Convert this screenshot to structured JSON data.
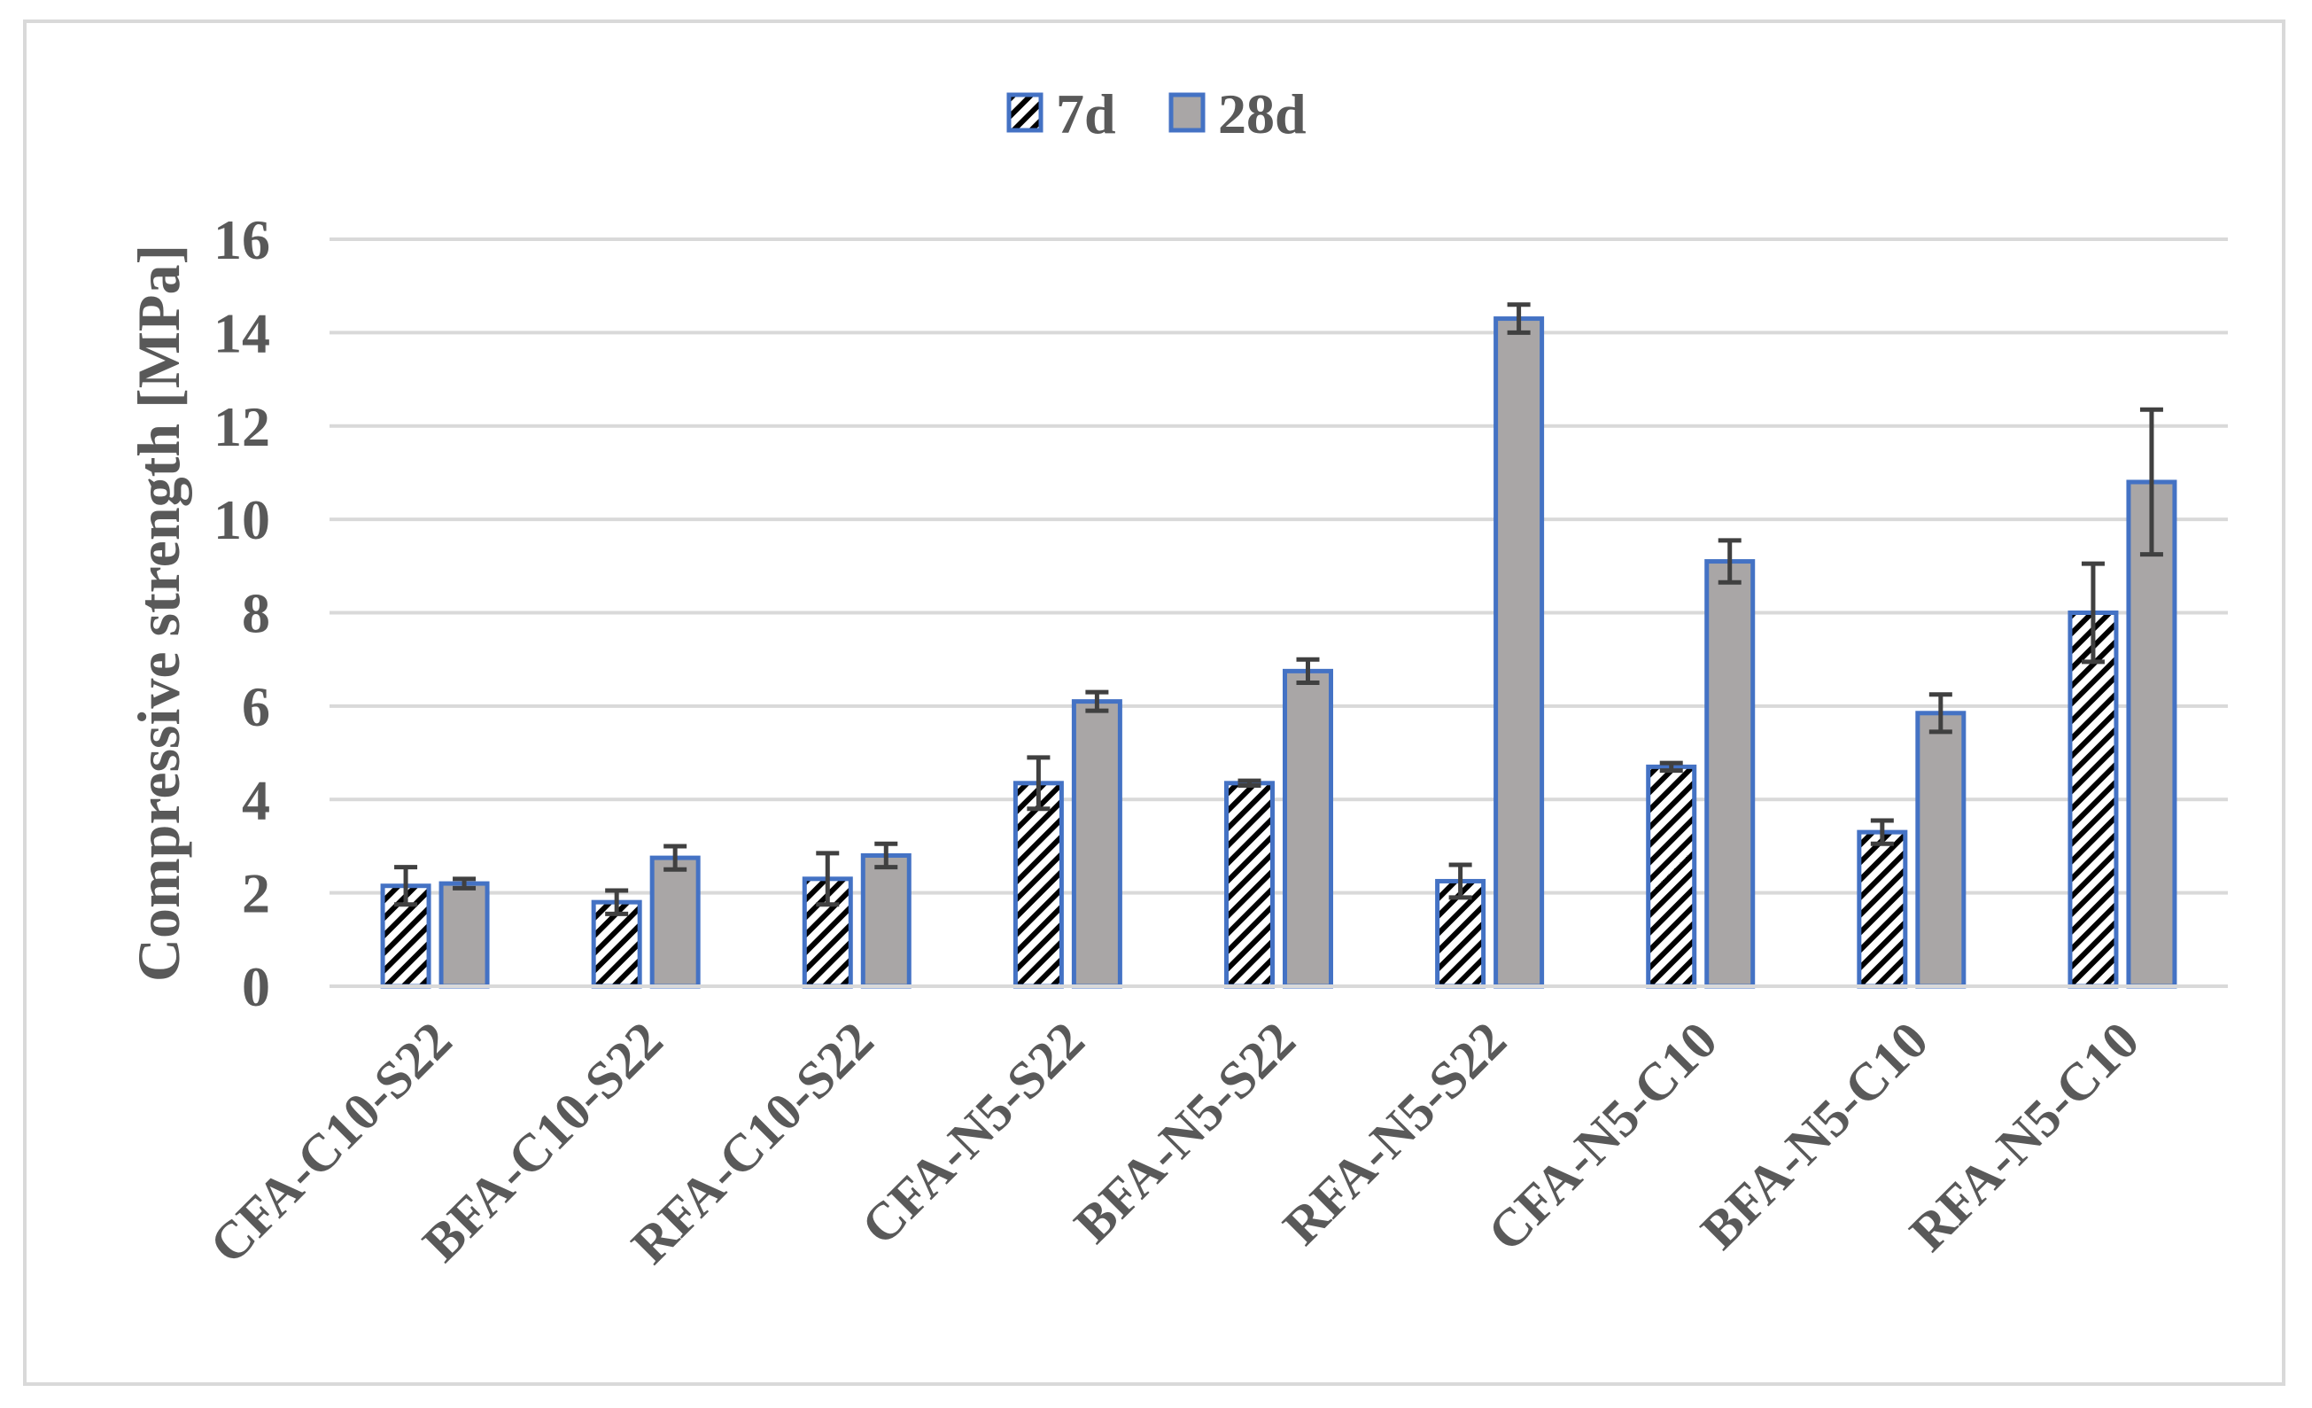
{
  "chart_data": {
    "type": "bar",
    "title": "",
    "xlabel": "",
    "ylabel": "Compressive strength [MPa]",
    "ylim": [
      0,
      16
    ],
    "yticks": [
      0,
      2,
      4,
      6,
      8,
      10,
      12,
      14,
      16
    ],
    "grid": true,
    "legend_position": "top",
    "categories": [
      "CFA-C10-S22",
      "BFA-C10-S22",
      "RFA-C10-S22",
      "CFA-N5-S22",
      "BFA-N5-S22",
      "RFA-N5-S22",
      "CFA-N5-C10",
      "BFA-N5-C10",
      "RFA-N5-C10"
    ],
    "series": [
      {
        "name": "7d",
        "pattern": "diagonal-hatch",
        "values": [
          2.15,
          1.8,
          2.3,
          4.35,
          4.35,
          2.25,
          4.7,
          3.3,
          8.0
        ],
        "error": [
          0.4,
          0.25,
          0.55,
          0.55,
          0.05,
          0.35,
          0.08,
          0.25,
          1.05
        ]
      },
      {
        "name": "28d",
        "pattern": "solid",
        "values": [
          2.2,
          2.75,
          2.8,
          6.1,
          6.75,
          14.3,
          9.1,
          5.85,
          10.8
        ],
        "error": [
          0.1,
          0.25,
          0.25,
          0.2,
          0.25,
          0.3,
          0.45,
          0.4,
          1.55
        ]
      }
    ]
  },
  "colors": {
    "bar_outline": "#4472c4",
    "fill_28d": "#a9a6a6",
    "hatch": "#000000",
    "error_bar": "#404040",
    "gridline": "#d9d9d9",
    "text": "#595959"
  }
}
